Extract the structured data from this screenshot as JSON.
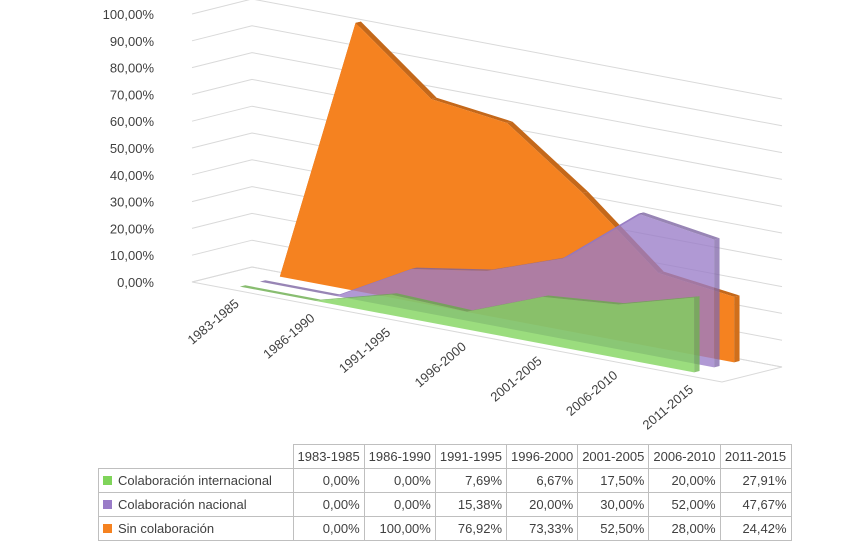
{
  "chart_data": {
    "type": "area",
    "variant": "3d-area",
    "categories": [
      "1983-1985",
      "1986-1990",
      "1991-1995",
      "1996-2000",
      "2001-2005",
      "2006-2010",
      "2011-2015"
    ],
    "y_ticks": [
      "0,00%",
      "10,00%",
      "20,00%",
      "30,00%",
      "40,00%",
      "50,00%",
      "60,00%",
      "70,00%",
      "80,00%",
      "90,00%",
      "100,00%"
    ],
    "ylim": [
      0,
      100
    ],
    "grid": true,
    "legend": "data-table-below",
    "series": [
      {
        "name": "Colaboración internacional",
        "color": "#7fd45a",
        "values": [
          0,
          0,
          7.69,
          6.67,
          17.5,
          20.0,
          27.91
        ],
        "labels": [
          "0,00%",
          "0,00%",
          "7,69%",
          "6,67%",
          "17,50%",
          "20,00%",
          "27,91%"
        ]
      },
      {
        "name": "Colaboración nacional",
        "color": "#9a7cc8",
        "values": [
          0,
          0,
          15.38,
          20.0,
          30.0,
          52.0,
          47.67
        ],
        "labels": [
          "0,00%",
          "0,00%",
          "15,38%",
          "20,00%",
          "30,00%",
          "52,00%",
          "47,67%"
        ]
      },
      {
        "name": "Sin colaboración",
        "color": "#f58220",
        "values": [
          0,
          100,
          76.92,
          73.33,
          52.5,
          28.0,
          24.42
        ],
        "labels": [
          "0,00%",
          "100,00%",
          "76,92%",
          "73,33%",
          "52,50%",
          "28,00%",
          "24,42%"
        ]
      }
    ]
  }
}
